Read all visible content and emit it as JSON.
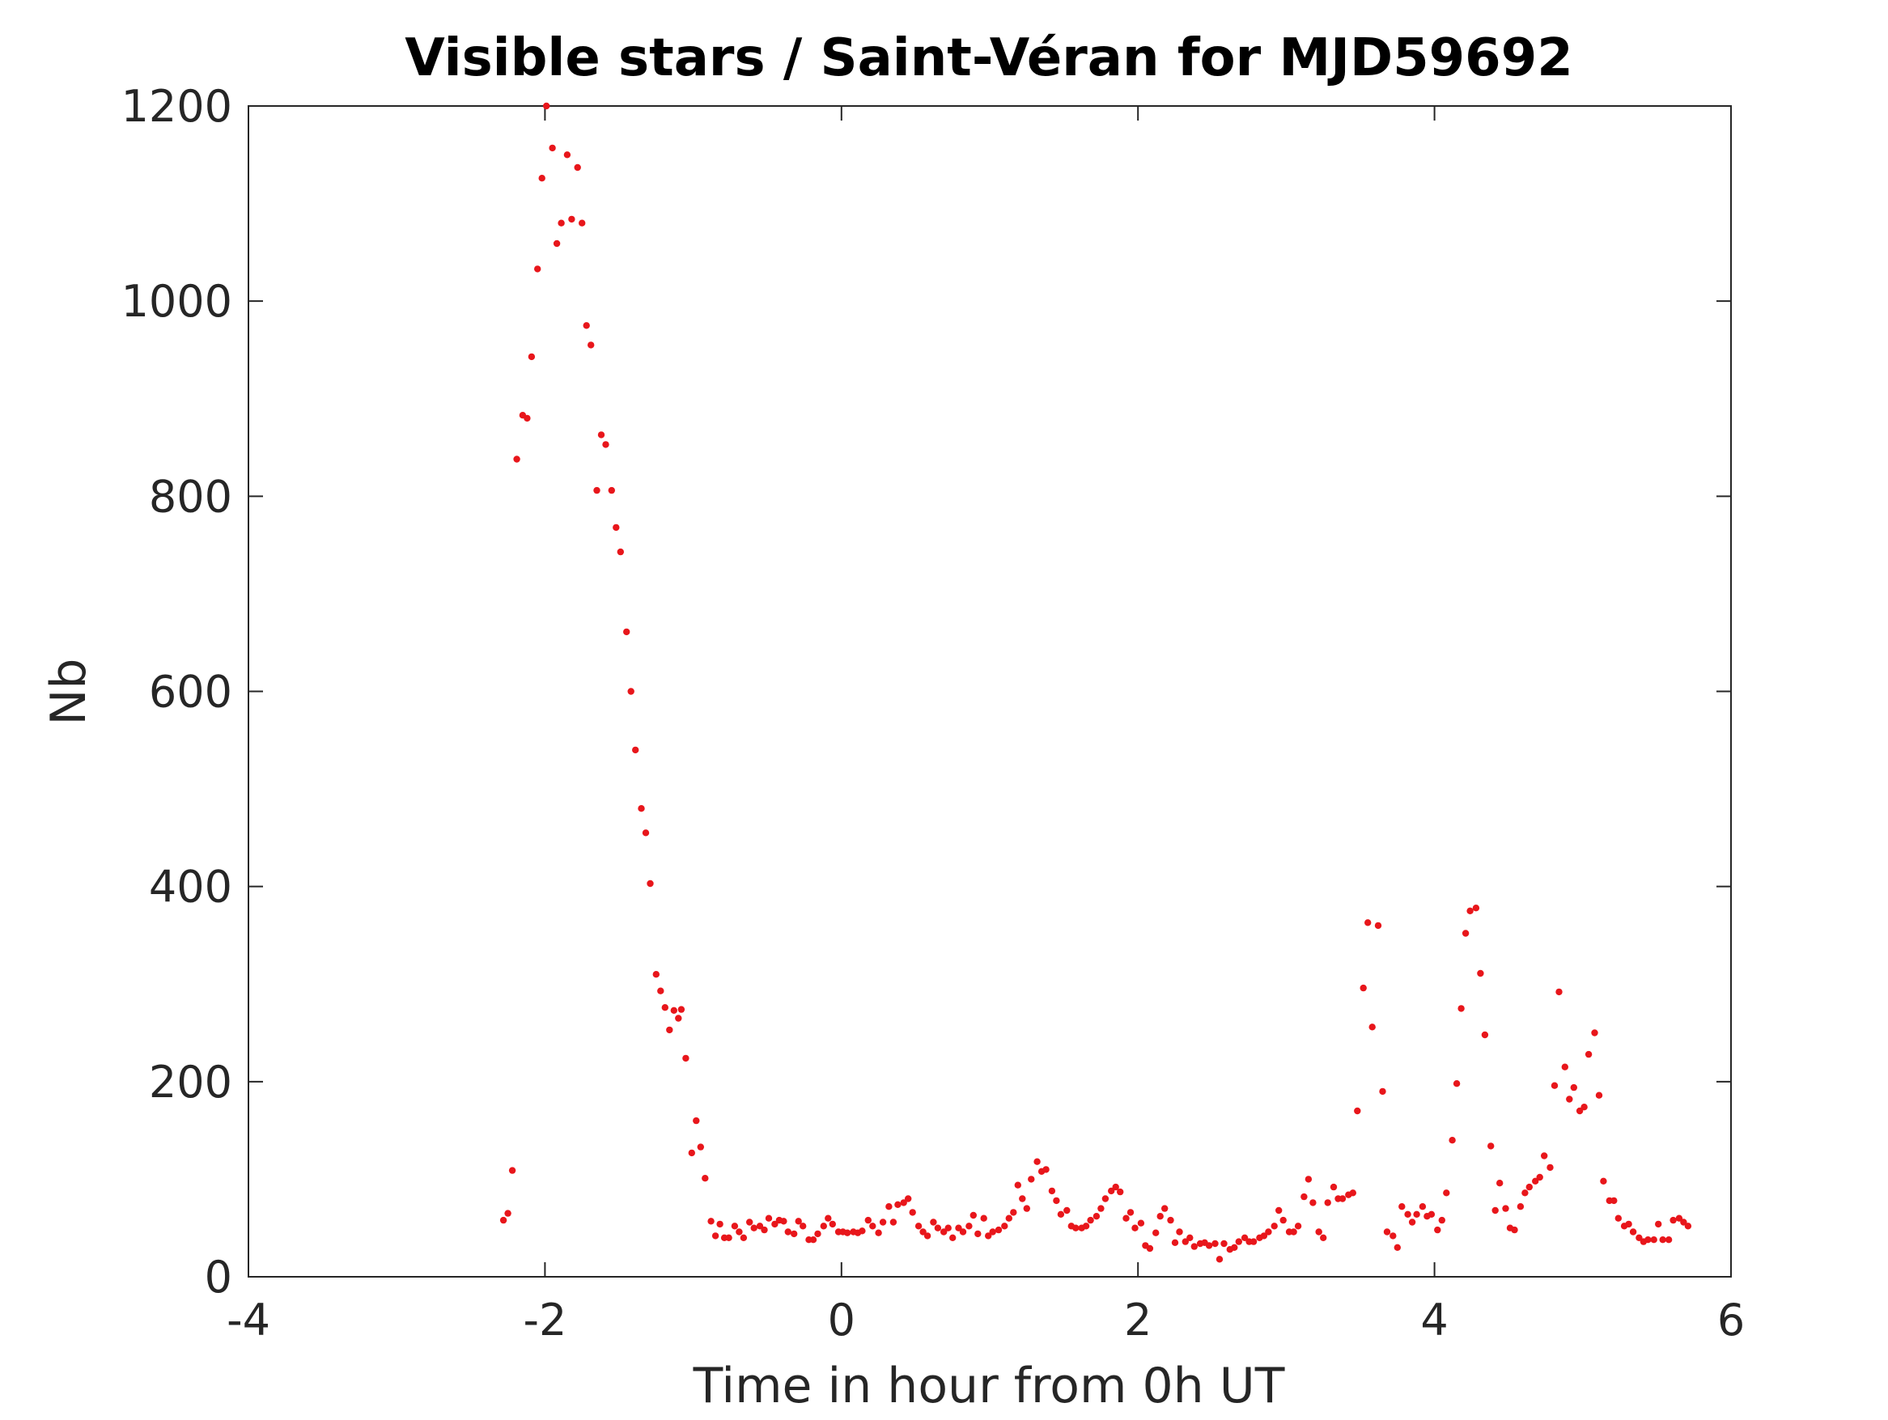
{
  "chart_data": {
    "type": "scatter",
    "title": "Visible stars / Saint-Véran for MJD59692",
    "xlabel": "Time in hour from 0h UT",
    "ylabel": "Nb",
    "xlim": [
      -4,
      6
    ],
    "ylim": [
      0,
      1200
    ],
    "x_ticks": [
      -4,
      -2,
      0,
      2,
      4,
      6
    ],
    "y_ticks": [
      0,
      200,
      400,
      600,
      800,
      1000,
      1200
    ],
    "x_tick_labels": [
      "-4",
      "-2",
      "0",
      "2",
      "4",
      "6"
    ],
    "y_tick_labels": [
      "0",
      "200",
      "400",
      "600",
      "800",
      "1000",
      "1200"
    ],
    "grid": false,
    "legend": "none",
    "marker_color": "#e8161b",
    "series": [
      {
        "points": [
          [
            -2.28,
            58
          ],
          [
            -2.25,
            65
          ],
          [
            -2.22,
            109
          ],
          [
            -2.19,
            838
          ],
          [
            -2.15,
            883
          ],
          [
            -2.12,
            880
          ],
          [
            -2.09,
            943
          ],
          [
            -2.05,
            1033
          ],
          [
            -2.02,
            1126
          ],
          [
            -1.99,
            1200
          ],
          [
            -1.95,
            1157
          ],
          [
            -1.92,
            1059
          ],
          [
            -1.89,
            1080
          ],
          [
            -1.85,
            1150
          ],
          [
            -1.82,
            1084
          ],
          [
            -1.78,
            1137
          ],
          [
            -1.75,
            1080
          ],
          [
            -1.72,
            975
          ],
          [
            -1.69,
            955
          ],
          [
            -1.65,
            806
          ],
          [
            -1.62,
            863
          ],
          [
            -1.59,
            853
          ],
          [
            -1.55,
            806
          ],
          [
            -1.52,
            768
          ],
          [
            -1.49,
            743
          ],
          [
            -1.45,
            661
          ],
          [
            -1.42,
            600
          ],
          [
            -1.39,
            540
          ],
          [
            -1.35,
            480
          ],
          [
            -1.32,
            455
          ],
          [
            -1.29,
            403
          ],
          [
            -1.25,
            310
          ],
          [
            -1.22,
            293
          ],
          [
            -1.19,
            276
          ],
          [
            -1.16,
            253
          ],
          [
            -1.13,
            273
          ],
          [
            -1.1,
            265
          ],
          [
            -1.08,
            274
          ],
          [
            -1.05,
            224
          ],
          [
            -1.01,
            127
          ],
          [
            -0.98,
            160
          ],
          [
            -0.95,
            133
          ],
          [
            -0.92,
            101
          ],
          [
            -0.88,
            57
          ],
          [
            -0.85,
            42
          ],
          [
            -0.82,
            54
          ],
          [
            -0.79,
            40
          ],
          [
            -0.76,
            40
          ],
          [
            -0.72,
            52
          ],
          [
            -0.69,
            46
          ],
          [
            -0.66,
            40
          ],
          [
            -0.62,
            56
          ],
          [
            -0.59,
            50
          ],
          [
            -0.55,
            52
          ],
          [
            -0.52,
            48
          ],
          [
            -0.49,
            60
          ],
          [
            -0.45,
            54
          ],
          [
            -0.42,
            58
          ],
          [
            -0.39,
            57
          ],
          [
            -0.36,
            46
          ],
          [
            -0.32,
            44
          ],
          [
            -0.29,
            57
          ],
          [
            -0.26,
            52
          ],
          [
            -0.22,
            38
          ],
          [
            -0.19,
            38
          ],
          [
            -0.16,
            44
          ],
          [
            -0.12,
            52
          ],
          [
            -0.09,
            60
          ],
          [
            -0.06,
            54
          ],
          [
            -0.02,
            46
          ],
          [
            0.01,
            46
          ],
          [
            0.04,
            45
          ],
          [
            0.08,
            46
          ],
          [
            0.11,
            45
          ],
          [
            0.14,
            47
          ],
          [
            0.18,
            58
          ],
          [
            0.21,
            52
          ],
          [
            0.25,
            45
          ],
          [
            0.28,
            56
          ],
          [
            0.32,
            72
          ],
          [
            0.35,
            56
          ],
          [
            0.38,
            74
          ],
          [
            0.42,
            76
          ],
          [
            0.45,
            80
          ],
          [
            0.48,
            66
          ],
          [
            0.52,
            52
          ],
          [
            0.55,
            46
          ],
          [
            0.58,
            42
          ],
          [
            0.62,
            56
          ],
          [
            0.65,
            50
          ],
          [
            0.69,
            46
          ],
          [
            0.72,
            50
          ],
          [
            0.75,
            40
          ],
          [
            0.79,
            50
          ],
          [
            0.82,
            46
          ],
          [
            0.86,
            52
          ],
          [
            0.89,
            63
          ],
          [
            0.92,
            44
          ],
          [
            0.96,
            60
          ],
          [
            0.99,
            42
          ],
          [
            1.02,
            46
          ],
          [
            1.06,
            48
          ],
          [
            1.1,
            52
          ],
          [
            1.13,
            60
          ],
          [
            1.16,
            66
          ],
          [
            1.19,
            94
          ],
          [
            1.22,
            80
          ],
          [
            1.25,
            70
          ],
          [
            1.28,
            100
          ],
          [
            1.32,
            118
          ],
          [
            1.35,
            108
          ],
          [
            1.38,
            110
          ],
          [
            1.42,
            88
          ],
          [
            1.45,
            78
          ],
          [
            1.48,
            64
          ],
          [
            1.52,
            68
          ],
          [
            1.55,
            52
          ],
          [
            1.58,
            50
          ],
          [
            1.62,
            50
          ],
          [
            1.65,
            52
          ],
          [
            1.68,
            58
          ],
          [
            1.72,
            62
          ],
          [
            1.75,
            70
          ],
          [
            1.78,
            80
          ],
          [
            1.82,
            88
          ],
          [
            1.85,
            92
          ],
          [
            1.88,
            87
          ],
          [
            1.92,
            60
          ],
          [
            1.95,
            66
          ],
          [
            1.98,
            50
          ],
          [
            2.02,
            55
          ],
          [
            2.05,
            32
          ],
          [
            2.08,
            29
          ],
          [
            2.12,
            45
          ],
          [
            2.15,
            62
          ],
          [
            2.18,
            70
          ],
          [
            2.22,
            58
          ],
          [
            2.25,
            35
          ],
          [
            2.28,
            46
          ],
          [
            2.32,
            36
          ],
          [
            2.35,
            40
          ],
          [
            2.38,
            31
          ],
          [
            2.42,
            34
          ],
          [
            2.45,
            35
          ],
          [
            2.48,
            32
          ],
          [
            2.52,
            34
          ],
          [
            2.55,
            18
          ],
          [
            2.58,
            34
          ],
          [
            2.62,
            28
          ],
          [
            2.65,
            30
          ],
          [
            2.68,
            36
          ],
          [
            2.72,
            40
          ],
          [
            2.75,
            36
          ],
          [
            2.78,
            36
          ],
          [
            2.82,
            40
          ],
          [
            2.85,
            42
          ],
          [
            2.88,
            46
          ],
          [
            2.92,
            52
          ],
          [
            2.95,
            68
          ],
          [
            2.98,
            58
          ],
          [
            3.02,
            46
          ],
          [
            3.05,
            46
          ],
          [
            3.08,
            52
          ],
          [
            3.12,
            82
          ],
          [
            3.15,
            100
          ],
          [
            3.18,
            76
          ],
          [
            3.22,
            46
          ],
          [
            3.25,
            40
          ],
          [
            3.28,
            76
          ],
          [
            3.32,
            92
          ],
          [
            3.35,
            80
          ],
          [
            3.38,
            80
          ],
          [
            3.42,
            84
          ],
          [
            3.45,
            86
          ],
          [
            3.48,
            170
          ],
          [
            3.52,
            296
          ],
          [
            3.55,
            363
          ],
          [
            3.58,
            256
          ],
          [
            3.62,
            360
          ],
          [
            3.65,
            190
          ],
          [
            3.68,
            46
          ],
          [
            3.72,
            42
          ],
          [
            3.75,
            30
          ],
          [
            3.78,
            72
          ],
          [
            3.82,
            64
          ],
          [
            3.85,
            56
          ],
          [
            3.88,
            64
          ],
          [
            3.92,
            72
          ],
          [
            3.95,
            62
          ],
          [
            3.98,
            64
          ],
          [
            4.02,
            48
          ],
          [
            4.05,
            58
          ],
          [
            4.08,
            86
          ],
          [
            4.12,
            140
          ],
          [
            4.15,
            198
          ],
          [
            4.18,
            275
          ],
          [
            4.21,
            352
          ],
          [
            4.24,
            375
          ],
          [
            4.28,
            378
          ],
          [
            4.31,
            311
          ],
          [
            4.34,
            248
          ],
          [
            4.38,
            134
          ],
          [
            4.41,
            68
          ],
          [
            4.44,
            96
          ],
          [
            4.48,
            70
          ],
          [
            4.51,
            50
          ],
          [
            4.54,
            48
          ],
          [
            4.58,
            72
          ],
          [
            4.61,
            86
          ],
          [
            4.64,
            92
          ],
          [
            4.68,
            98
          ],
          [
            4.71,
            102
          ],
          [
            4.74,
            124
          ],
          [
            4.78,
            112
          ],
          [
            4.81,
            196
          ],
          [
            4.84,
            292
          ],
          [
            4.88,
            215
          ],
          [
            4.91,
            182
          ],
          [
            4.94,
            194
          ],
          [
            4.98,
            170
          ],
          [
            5.01,
            174
          ],
          [
            5.04,
            228
          ],
          [
            5.08,
            250
          ],
          [
            5.11,
            186
          ],
          [
            5.14,
            98
          ],
          [
            5.18,
            78
          ],
          [
            5.21,
            78
          ],
          [
            5.24,
            60
          ],
          [
            5.28,
            52
          ],
          [
            5.31,
            54
          ],
          [
            5.34,
            46
          ],
          [
            5.38,
            40
          ],
          [
            5.41,
            36
          ],
          [
            5.44,
            38
          ],
          [
            5.48,
            38
          ],
          [
            5.51,
            54
          ],
          [
            5.54,
            38
          ],
          [
            5.58,
            38
          ],
          [
            5.61,
            58
          ],
          [
            5.65,
            60
          ],
          [
            5.68,
            56
          ],
          [
            5.71,
            52
          ]
        ]
      }
    ]
  }
}
